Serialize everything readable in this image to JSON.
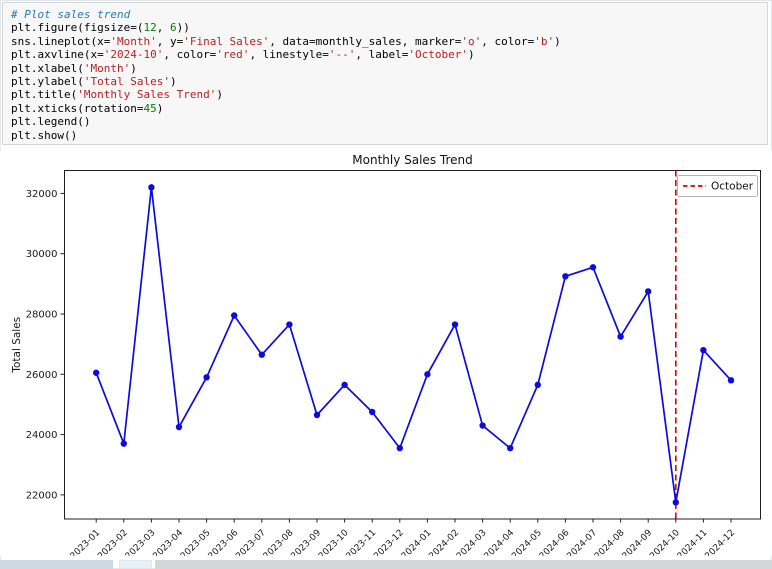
{
  "code_cell": {
    "lines": [
      [
        {
          "t": "# Plot sales trend",
          "c": "com"
        }
      ],
      [
        {
          "t": "plt.figure(figsize=(",
          "c": "txt"
        },
        {
          "t": "12",
          "c": "num"
        },
        {
          "t": ", ",
          "c": "txt"
        },
        {
          "t": "6",
          "c": "num"
        },
        {
          "t": "))",
          "c": "txt"
        }
      ],
      [
        {
          "t": "sns.lineplot(x=",
          "c": "txt"
        },
        {
          "t": "'Month'",
          "c": "str"
        },
        {
          "t": ", y=",
          "c": "txt"
        },
        {
          "t": "'Final Sales'",
          "c": "str"
        },
        {
          "t": ", data=monthly_sales, marker=",
          "c": "txt"
        },
        {
          "t": "'o'",
          "c": "str"
        },
        {
          "t": ", color=",
          "c": "txt"
        },
        {
          "t": "'b'",
          "c": "str"
        },
        {
          "t": ")",
          "c": "txt"
        }
      ],
      [
        {
          "t": "plt.axvline(x=",
          "c": "txt"
        },
        {
          "t": "'2024-10'",
          "c": "str"
        },
        {
          "t": ", color=",
          "c": "txt"
        },
        {
          "t": "'red'",
          "c": "str"
        },
        {
          "t": ", linestyle=",
          "c": "txt"
        },
        {
          "t": "'--'",
          "c": "str"
        },
        {
          "t": ", label=",
          "c": "txt"
        },
        {
          "t": "'October'",
          "c": "str"
        },
        {
          "t": ")",
          "c": "txt"
        }
      ],
      [
        {
          "t": "plt.xlabel(",
          "c": "txt"
        },
        {
          "t": "'Month'",
          "c": "str"
        },
        {
          "t": ")",
          "c": "txt"
        }
      ],
      [
        {
          "t": "plt.ylabel(",
          "c": "txt"
        },
        {
          "t": "'Total Sales'",
          "c": "str"
        },
        {
          "t": ")",
          "c": "txt"
        }
      ],
      [
        {
          "t": "plt.title(",
          "c": "txt"
        },
        {
          "t": "'Monthly Sales Trend'",
          "c": "str"
        },
        {
          "t": ")",
          "c": "txt"
        }
      ],
      [
        {
          "t": "plt.xticks(rotation=",
          "c": "txt"
        },
        {
          "t": "45",
          "c": "num"
        },
        {
          "t": ")",
          "c": "txt"
        }
      ],
      [
        {
          "t": "plt.legend()",
          "c": "txt"
        }
      ],
      [
        {
          "t": "plt.show()",
          "c": "txt"
        }
      ]
    ]
  },
  "chart_data": {
    "type": "line",
    "title": "Monthly Sales Trend",
    "xlabel": "Month",
    "ylabel": "Total Sales",
    "categories": [
      "2023-01",
      "2023-02",
      "2023-03",
      "2023-04",
      "2023-05",
      "2023-06",
      "2023-07",
      "2023-08",
      "2023-09",
      "2023-10",
      "2023-11",
      "2023-12",
      "2024-01",
      "2024-02",
      "2024-03",
      "2024-04",
      "2024-05",
      "2024-06",
      "2024-07",
      "2024-08",
      "2024-09",
      "2024-10",
      "2024-11",
      "2024-12"
    ],
    "series": [
      {
        "name": "Final Sales",
        "marker": "o",
        "color": "#0b0bdf",
        "values": [
          26050,
          23700,
          32200,
          24250,
          25900,
          27950,
          26650,
          27650,
          24650,
          25650,
          24750,
          23550,
          26000,
          27650,
          24300,
          23550,
          25650,
          29250,
          29550,
          27250,
          28750,
          21750,
          26800,
          25800
        ]
      }
    ],
    "yticks": [
      22000,
      24000,
      26000,
      28000,
      30000,
      32000
    ],
    "ylim": [
      21200,
      32760
    ],
    "grid": false,
    "vline": {
      "x": "2024-10",
      "color": "#e00000",
      "linestyle": "--",
      "label": "October"
    },
    "legend": {
      "position": "upper right",
      "entries": [
        "October"
      ]
    }
  }
}
